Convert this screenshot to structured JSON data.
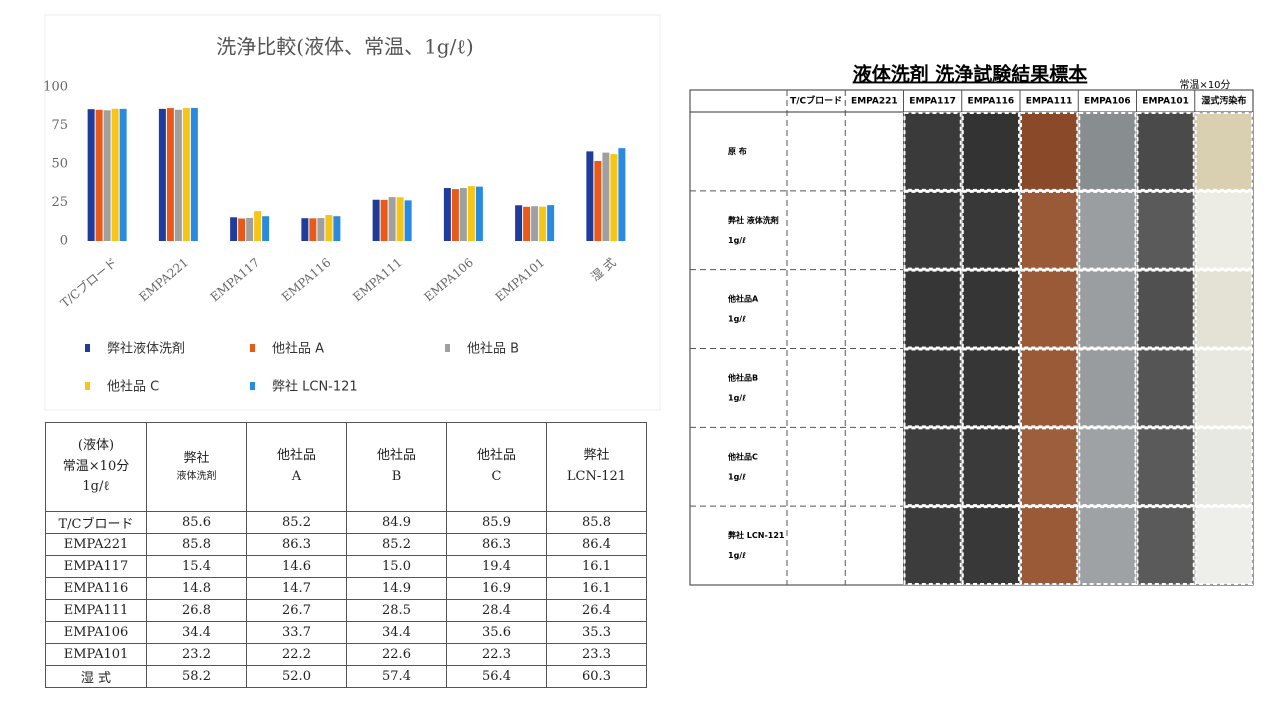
{
  "chart_data": {
    "type": "bar",
    "title": "洗浄比較(液体、常温、1g/ℓ)",
    "categories": [
      "T/Cブロード",
      "EMPA221",
      "EMPA117",
      "EMPA116",
      "EMPA111",
      "EMPA106",
      "EMPA101",
      "湿 式"
    ],
    "series": [
      {
        "name": "弊社液体洗剤",
        "color": "#1f3c9a",
        "values": [
          85.6,
          85.8,
          15.4,
          14.8,
          26.8,
          34.4,
          23.2,
          58.2
        ]
      },
      {
        "name": "他社品 A",
        "color": "#e8591a",
        "values": [
          85.2,
          86.3,
          14.6,
          14.7,
          26.7,
          33.7,
          22.2,
          52.0
        ]
      },
      {
        "name": "他社品 B",
        "color": "#a0a0a0",
        "values": [
          84.9,
          85.2,
          15.0,
          14.9,
          28.5,
          34.4,
          22.6,
          57.4
        ]
      },
      {
        "name": "他社品 C",
        "color": "#f5c518",
        "values": [
          85.9,
          86.3,
          19.4,
          16.9,
          28.4,
          35.6,
          22.3,
          56.4
        ]
      },
      {
        "name": "弊社 LCN-121",
        "color": "#2a8ae0",
        "values": [
          85.8,
          86.4,
          16.1,
          16.1,
          26.4,
          35.3,
          23.3,
          60.3
        ]
      }
    ],
    "ylim": [
      0,
      100
    ],
    "yticks": [
      0,
      25,
      50,
      75,
      100
    ],
    "grid": false
  },
  "table": {
    "corner": [
      "(液体)",
      "常温×10分",
      "1g/ℓ"
    ],
    "columns": [
      [
        "弊社",
        "液体洗剤"
      ],
      [
        "他社品",
        "A"
      ],
      [
        "他社品",
        "B"
      ],
      [
        "他社品",
        "C"
      ],
      [
        "弊社",
        "LCN-121"
      ]
    ],
    "rows": [
      [
        "T/Cブロード",
        "85.6",
        "85.2",
        "84.9",
        "85.9",
        "85.8"
      ],
      [
        "EMPA221",
        "85.8",
        "86.3",
        "85.2",
        "86.3",
        "86.4"
      ],
      [
        "EMPA117",
        "15.4",
        "14.6",
        "15.0",
        "19.4",
        "16.1"
      ],
      [
        "EMPA116",
        "14.8",
        "14.7",
        "14.9",
        "16.9",
        "16.1"
      ],
      [
        "EMPA111",
        "26.8",
        "26.7",
        "28.5",
        "28.4",
        "26.4"
      ],
      [
        "EMPA106",
        "34.4",
        "33.7",
        "34.4",
        "35.6",
        "35.3"
      ],
      [
        "EMPA101",
        "23.2",
        "22.2",
        "22.6",
        "22.3",
        "23.3"
      ],
      [
        "湿 式",
        "58.2",
        "52.0",
        "57.4",
        "56.4",
        "60.3"
      ]
    ]
  },
  "samples": {
    "title": "液体洗剤 洗浄試験結果標本",
    "note": "常温×10分",
    "columns": [
      "T/Cブロード",
      "EMPA221",
      "EMPA117",
      "EMPA116",
      "EMPA111",
      "EMPA106",
      "EMPA101",
      "湿式汚染布"
    ],
    "rows": [
      [
        "原 布"
      ],
      [
        "弊社 液体洗剤",
        "1g/ℓ"
      ],
      [
        "他社品A",
        "1g/ℓ"
      ],
      [
        "他社品B",
        "1g/ℓ"
      ],
      [
        "他社品C",
        "1g/ℓ"
      ],
      [
        "弊社 LCN-121",
        "1g/ℓ"
      ]
    ],
    "swatch_colors": [
      [
        null,
        null,
        "#3a3a3a",
        "#333333",
        "#8a4a2a",
        "#888d90",
        "#4a4a4a",
        "#d8d0b0"
      ],
      [
        null,
        null,
        "#3c3c3c",
        "#383838",
        "#9a5a38",
        "#9a9ea0",
        "#5a5a5a",
        "#ecece4"
      ],
      [
        null,
        null,
        "#363636",
        "#353535",
        "#9a5a38",
        "#9a9ea0",
        "#505050",
        "#e4e2d4"
      ],
      [
        null,
        null,
        "#383838",
        "#363636",
        "#9a5a38",
        "#989c9e",
        "#555555",
        "#e8e8e0"
      ],
      [
        null,
        null,
        "#3e3e3e",
        "#3a3a3a",
        "#9c5e3c",
        "#9ea2a4",
        "#5a5a5a",
        "#e8e8e2"
      ],
      [
        null,
        null,
        "#3c3c3c",
        "#383838",
        "#9a5a38",
        "#9ea2a4",
        "#5a5a5a",
        "#eeeeea"
      ]
    ]
  }
}
